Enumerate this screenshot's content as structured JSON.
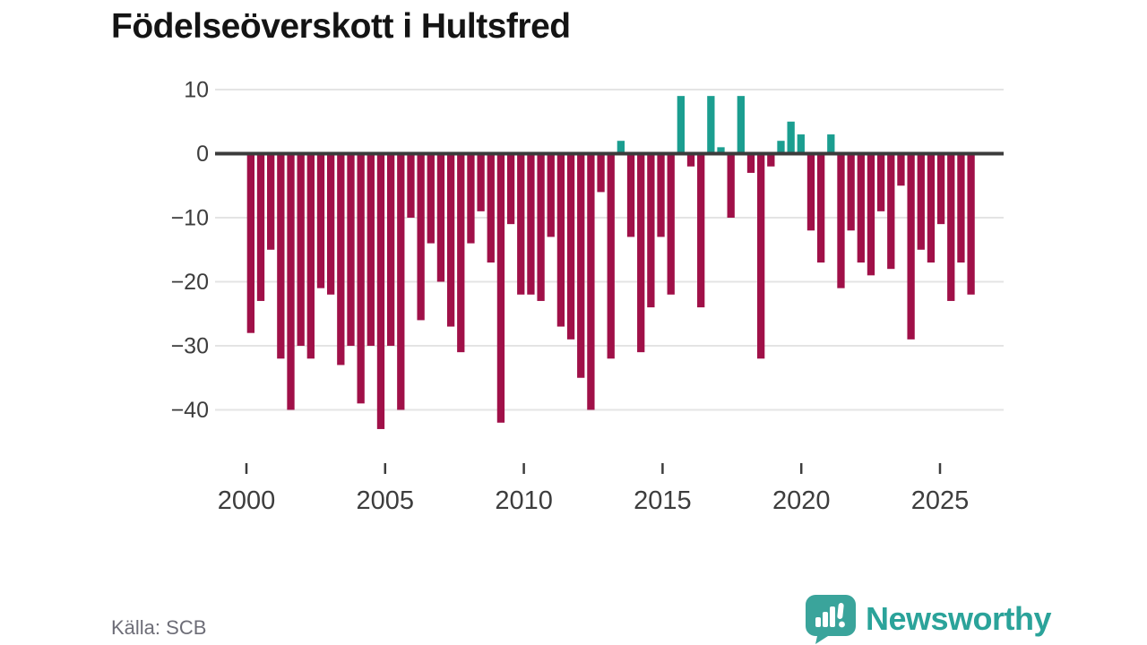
{
  "title": "Födelseöverskott i Hultsfred",
  "source": "Källa: SCB",
  "logo": {
    "text": "Newsworthy",
    "icon": "newsworthy-speech-bubble-chart-icon"
  },
  "colors": {
    "negative": "#a01048",
    "positive": "#1b9e90",
    "zero_line": "#3b3b3b",
    "grid": "#e4e4e4",
    "axis_text": "#3d3d3d",
    "source_text": "#6d6d77",
    "logo_teal": "#3aa49b",
    "logo_text_teal": "#2ba39a",
    "title_color": "#141414",
    "background": "#ffffff"
  },
  "chart_data": {
    "type": "bar",
    "title": "Födelseöverskott i Hultsfred",
    "xlabel": "",
    "ylabel": "",
    "x_range_years": [
      2000,
      2026
    ],
    "x_ticks": [
      {
        "year": 2000,
        "label": "2000"
      },
      {
        "year": 2005,
        "label": "2005"
      },
      {
        "year": 2010,
        "label": "2010"
      },
      {
        "year": 2015,
        "label": "2015"
      },
      {
        "year": 2020,
        "label": "2020"
      },
      {
        "year": 2025,
        "label": "2025"
      }
    ],
    "y_ticks": [
      {
        "value": 10,
        "label": "10"
      },
      {
        "value": 0,
        "label": "0"
      },
      {
        "value": -10,
        "label": "−10"
      },
      {
        "value": -20,
        "label": "−20"
      },
      {
        "value": -30,
        "label": "−30"
      },
      {
        "value": -40,
        "label": "−40"
      }
    ],
    "ylim": [
      -45,
      11
    ],
    "grid": "horizontal",
    "legend": "none",
    "values": [
      -28,
      -23,
      -15,
      -32,
      -40,
      -30,
      -32,
      -21,
      -22,
      -33,
      -30,
      -39,
      -30,
      -43,
      -30,
      -40,
      -10,
      -26,
      -14,
      -20,
      -27,
      -31,
      -14,
      -9,
      -17,
      -42,
      -11,
      -22,
      -22,
      -23,
      -13,
      -27,
      -29,
      -35,
      -40,
      -6,
      -32,
      2,
      -13,
      -31,
      -24,
      -13,
      -22,
      9,
      -2,
      -24,
      9,
      1,
      -10,
      9,
      -3,
      -32,
      -2,
      2,
      5,
      3,
      -12,
      -17,
      3,
      -21,
      -12,
      -17,
      -19,
      -9,
      -18,
      -5,
      -29,
      -15,
      -17,
      -11,
      -23,
      -17,
      -22
    ]
  }
}
